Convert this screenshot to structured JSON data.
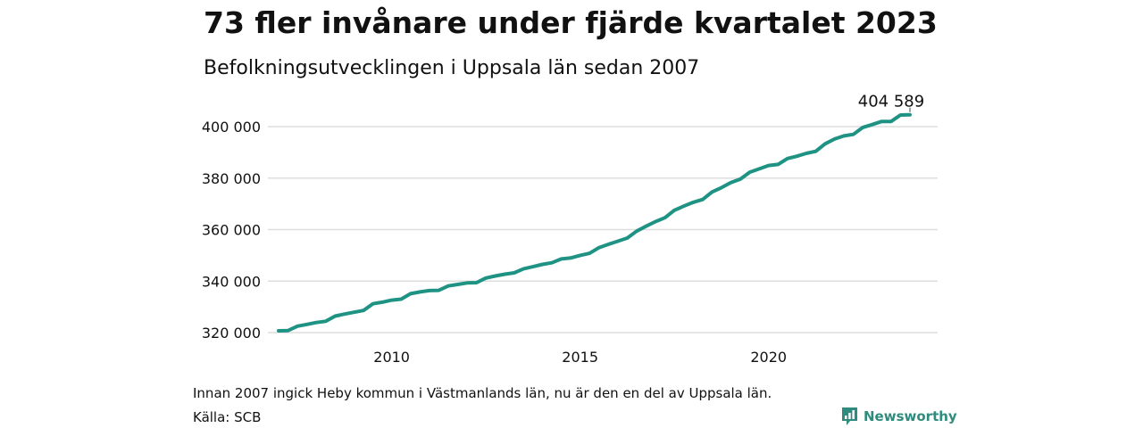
{
  "title": "73 fler invånare under fjärde kvartalet 2023",
  "subtitle": "Befolkningsutvecklingen i Uppsala län sedan 2007",
  "note": "Innan 2007 ingick Heby kommun i Västmanlands län, nu är den en del av Uppsala län.",
  "source": "Källa: SCB",
  "brand": {
    "name": "Newsworthy",
    "icon": "newsworthy-logo-icon",
    "color": "#2e8b7e"
  },
  "chart_data": {
    "type": "line",
    "title": "73 fler invånare under fjärde kvartalet 2023",
    "subtitle": "Befolkningsutvecklingen i Uppsala län sedan 2007",
    "xlabel": "",
    "ylabel": "",
    "x_ticks": [
      2010,
      2015,
      2020
    ],
    "x_tick_labels": [
      "2010",
      "2015",
      "2020"
    ],
    "y_ticks": [
      320000,
      340000,
      360000,
      380000,
      400000
    ],
    "y_tick_labels": [
      "320 000",
      "340 000",
      "360 000",
      "380 000",
      "400 000"
    ],
    "xlim": [
      2007.0,
      2024.5
    ],
    "ylim": [
      318000,
      407000
    ],
    "grid": "horizontal",
    "line_color": "#1f9383",
    "end_label": "404 589",
    "series": [
      {
        "x": [
          2007.0,
          2007.25,
          2007.5,
          2007.75,
          2008.0,
          2008.25,
          2008.5,
          2008.75,
          2009.0,
          2009.25,
          2009.5,
          2009.75,
          2010.0,
          2010.25,
          2010.5,
          2010.75,
          2011.0,
          2011.25,
          2011.5,
          2011.75,
          2012.0,
          2012.25,
          2012.5,
          2012.75,
          2013.0,
          2013.25,
          2013.5,
          2013.75,
          2014.0,
          2014.25,
          2014.5,
          2014.75,
          2015.0,
          2015.25,
          2015.5,
          2015.75,
          2016.0,
          2016.25,
          2016.5,
          2016.75,
          2017.0,
          2017.25,
          2017.5,
          2017.75,
          2018.0,
          2018.25,
          2018.5,
          2018.75,
          2019.0,
          2019.25,
          2019.5,
          2019.75,
          2020.0,
          2020.25,
          2020.5,
          2020.75,
          2021.0,
          2021.25,
          2021.5,
          2021.75,
          2022.0,
          2022.25,
          2022.5,
          2022.75,
          2023.0,
          2023.25,
          2023.5,
          2023.75
        ],
        "values": [
          320700,
          320800,
          322500,
          323200,
          323900,
          324400,
          326400,
          327200,
          327900,
          328600,
          331200,
          331800,
          332600,
          333000,
          335100,
          335800,
          336300,
          336400,
          338100,
          338700,
          339300,
          339400,
          341200,
          342000,
          342700,
          343200,
          344800,
          345600,
          346500,
          347100,
          348600,
          349000,
          350000,
          350800,
          353000,
          354300,
          355500,
          356700,
          359400,
          361300,
          363100,
          364600,
          367500,
          369100,
          370600,
          371700,
          374600,
          376300,
          378300,
          379600,
          382300,
          383600,
          384900,
          385300,
          387600,
          388500,
          389600,
          390400,
          393300,
          395200,
          396400,
          397000,
          399700,
          400800,
          402000,
          402000,
          404500,
          404589
        ]
      }
    ]
  }
}
